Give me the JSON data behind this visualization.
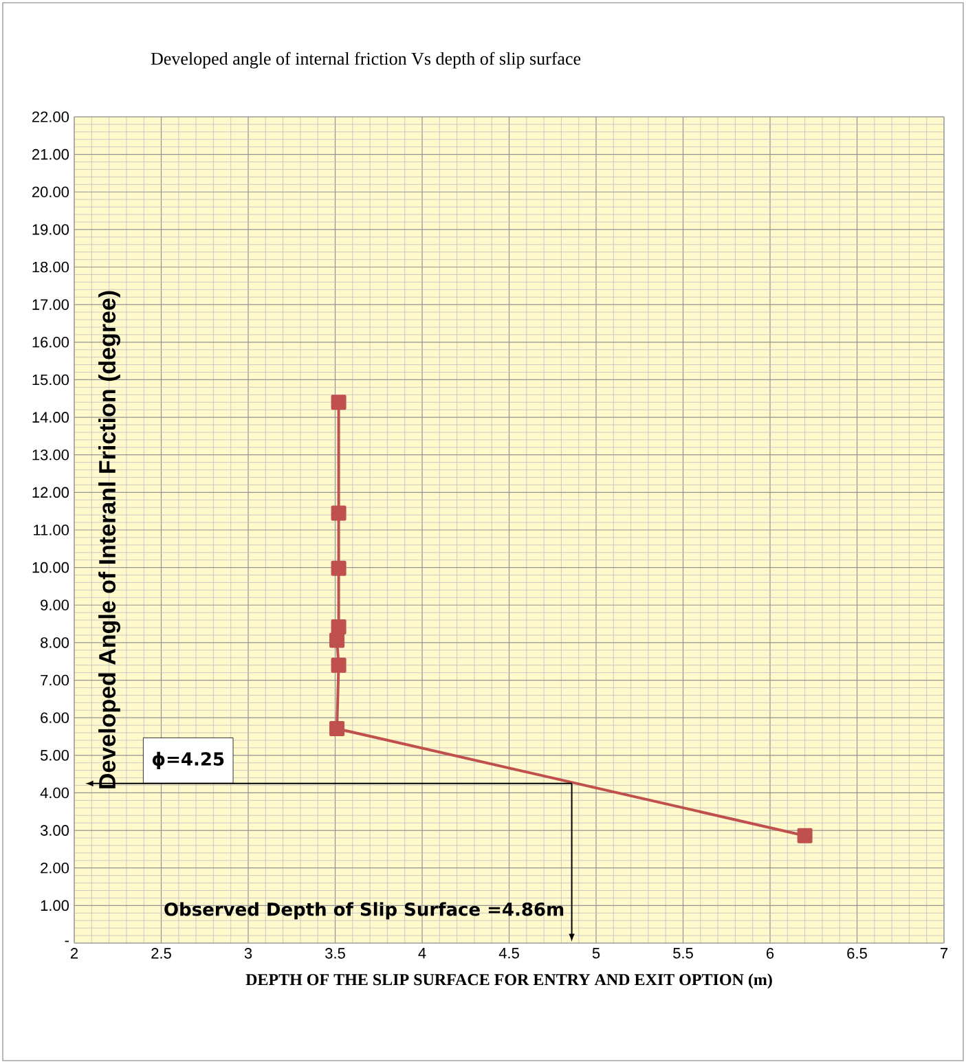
{
  "chart_data": {
    "type": "line",
    "title": "Developed angle of internal friction Vs depth of slip surface",
    "xlabel": "DEPTH OF THE SLIP SURFACE FOR ENTRY AND EXIT OPTION (m)",
    "ylabel": "Developed Angle of Interanl Friction (degree)",
    "series": [
      {
        "color": "#c0504d",
        "x": [
          3.52,
          3.52,
          3.52,
          3.52,
          3.51,
          3.52,
          3.51,
          6.2
        ],
        "values": [
          14.4,
          11.45,
          9.98,
          8.42,
          8.06,
          7.4,
          5.71,
          2.86
        ]
      }
    ],
    "xlim": [
      2,
      7
    ],
    "ylim": [
      0,
      22
    ],
    "xticks": [
      2,
      2.5,
      3,
      3.5,
      4,
      4.5,
      5,
      5.5,
      6,
      6.5,
      7
    ],
    "yticks": [
      {
        "value": 0,
        "label": "-"
      },
      {
        "value": 1,
        "label": "1.00"
      },
      {
        "value": 2,
        "label": "2.00"
      },
      {
        "value": 3,
        "label": "3.00"
      },
      {
        "value": 4,
        "label": "4.00"
      },
      {
        "value": 5,
        "label": "5.00"
      },
      {
        "value": 6,
        "label": "6.00"
      },
      {
        "value": 7,
        "label": "7.00"
      },
      {
        "value": 8,
        "label": "8.00"
      },
      {
        "value": 9,
        "label": "9.00"
      },
      {
        "value": 10,
        "label": "10.00"
      },
      {
        "value": 11,
        "label": "11.00"
      },
      {
        "value": 12,
        "label": "12.00"
      },
      {
        "value": 13,
        "label": "13.00"
      },
      {
        "value": 14,
        "label": "14.00"
      },
      {
        "value": 15,
        "label": "15.00"
      },
      {
        "value": 16,
        "label": "16.00"
      },
      {
        "value": 17,
        "label": "17.00"
      },
      {
        "value": 18,
        "label": "18.00"
      },
      {
        "value": 19,
        "label": "19.00"
      },
      {
        "value": 20,
        "label": "20.00"
      },
      {
        "value": 21,
        "label": "21.00"
      },
      {
        "value": 22,
        "label": "22.00"
      }
    ],
    "ref_lines": [
      {
        "axis": "y",
        "value": 4.25,
        "label": "ϕ=4.25"
      },
      {
        "axis": "x",
        "value": 4.86,
        "label": "Observed Depth of Slip Surface =4.86m"
      }
    ],
    "grid": true,
    "marker": "square",
    "line_style": "solid"
  }
}
